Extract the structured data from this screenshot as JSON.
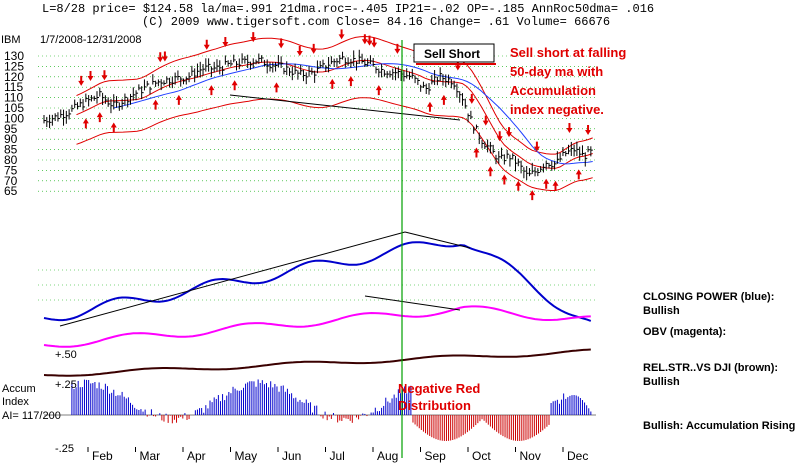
{
  "header": {
    "line1": "L=8/28  price= $124.58  la/ma=.991 21dma.roc=-.405 IP21=-.02 OP=-.185 AnnRoc50dma= .016",
    "line2": "(C) 2009 www.tigersoft.com     Close=  84.16  Change= .61 Volume= 66676",
    "date_range": "1/7/2008-12/31/2008",
    "ticker": "IBM"
  },
  "annotations": {
    "sell_short_box": "Sell Short",
    "sell_note": [
      "Sell short at falling",
      "50-day ma with",
      "Accumulation",
      "index negative."
    ],
    "negative_red": [
      "Negative Red",
      "Distribution"
    ]
  },
  "indicator_labels": {
    "plus50": "+.50",
    "accum": "Accum",
    "plus25": "+.25",
    "index": "Index",
    "ai": "AI= 117/200",
    "minus25": "-.25"
  },
  "side_labels": {
    "closing_power": "CLOSING POWER (blue):",
    "closing_power_state": "Bullish",
    "obv": "OBV (magenta):",
    "relstr": "REL.STR..VS DJI (brown):",
    "relstr_state": "Bullish",
    "accum_rising": "Bullish: Accumulation Rising"
  },
  "colors": {
    "price_bars": "#000000",
    "ma_blue": "#2040ff",
    "bands_red": "#e00000",
    "closing_power": "#0000cc",
    "obv": "#ff00ff",
    "relstr": "#3a0000",
    "accum_positive": "#0000cc",
    "accum_negative": "#cc0000",
    "gridline": "#00aa00",
    "marker_line": "#00a000"
  },
  "chart_data": {
    "type": "ohlc-bar",
    "ylim": [
      60,
      135
    ],
    "y_ticks": [
      130,
      125,
      120,
      115,
      110,
      105,
      100,
      95,
      90,
      85,
      80,
      75,
      70,
      65
    ],
    "months": [
      "Feb",
      "Mar",
      "Apr",
      "May",
      "Jun",
      "Jul",
      "Aug",
      "Sep",
      "Oct",
      "Nov",
      "Dec"
    ],
    "price_close_approx": [
      [
        0,
        99
      ],
      [
        0.3,
        101
      ],
      [
        0.6,
        104
      ],
      [
        0.9,
        108
      ],
      [
        1.2,
        111
      ],
      [
        1.5,
        106
      ],
      [
        1.8,
        110
      ],
      [
        2.2,
        115
      ],
      [
        2.5,
        118
      ],
      [
        2.8,
        119
      ],
      [
        3.1,
        120
      ],
      [
        3.4,
        124
      ],
      [
        3.7,
        124
      ],
      [
        4.0,
        126
      ],
      [
        4.3,
        127
      ],
      [
        4.6,
        128
      ],
      [
        4.9,
        126
      ],
      [
        5.2,
        124
      ],
      [
        5.5,
        121
      ],
      [
        5.8,
        122
      ],
      [
        6.1,
        126
      ],
      [
        6.4,
        129
      ],
      [
        6.7,
        128
      ],
      [
        7.0,
        126
      ],
      [
        7.3,
        123
      ],
      [
        7.6,
        122
      ],
      [
        7.9,
        120
      ],
      [
        8.2,
        114
      ],
      [
        8.5,
        120
      ],
      [
        8.8,
        118
      ],
      [
        9.0,
        110
      ],
      [
        9.2,
        98
      ],
      [
        9.4,
        90
      ],
      [
        9.6,
        85
      ],
      [
        9.8,
        80
      ],
      [
        10.0,
        82
      ],
      [
        10.2,
        78
      ],
      [
        10.4,
        72
      ],
      [
        10.6,
        75
      ],
      [
        10.8,
        79
      ],
      [
        11.0,
        78
      ],
      [
        11.2,
        83
      ],
      [
        11.4,
        85
      ],
      [
        11.6,
        82
      ],
      [
        11.8,
        84
      ]
    ],
    "series": [
      {
        "name": "CLOSING POWER (blue)",
        "trend": "Bullish"
      },
      {
        "name": "OBV (magenta)"
      },
      {
        "name": "REL.STR..VS DJI (brown)",
        "trend": "Bullish"
      },
      {
        "name": "Accum Index",
        "value_label": "AI= 117/200",
        "levels": [
          "+.50",
          "+.25",
          "-.25"
        ]
      }
    ]
  }
}
